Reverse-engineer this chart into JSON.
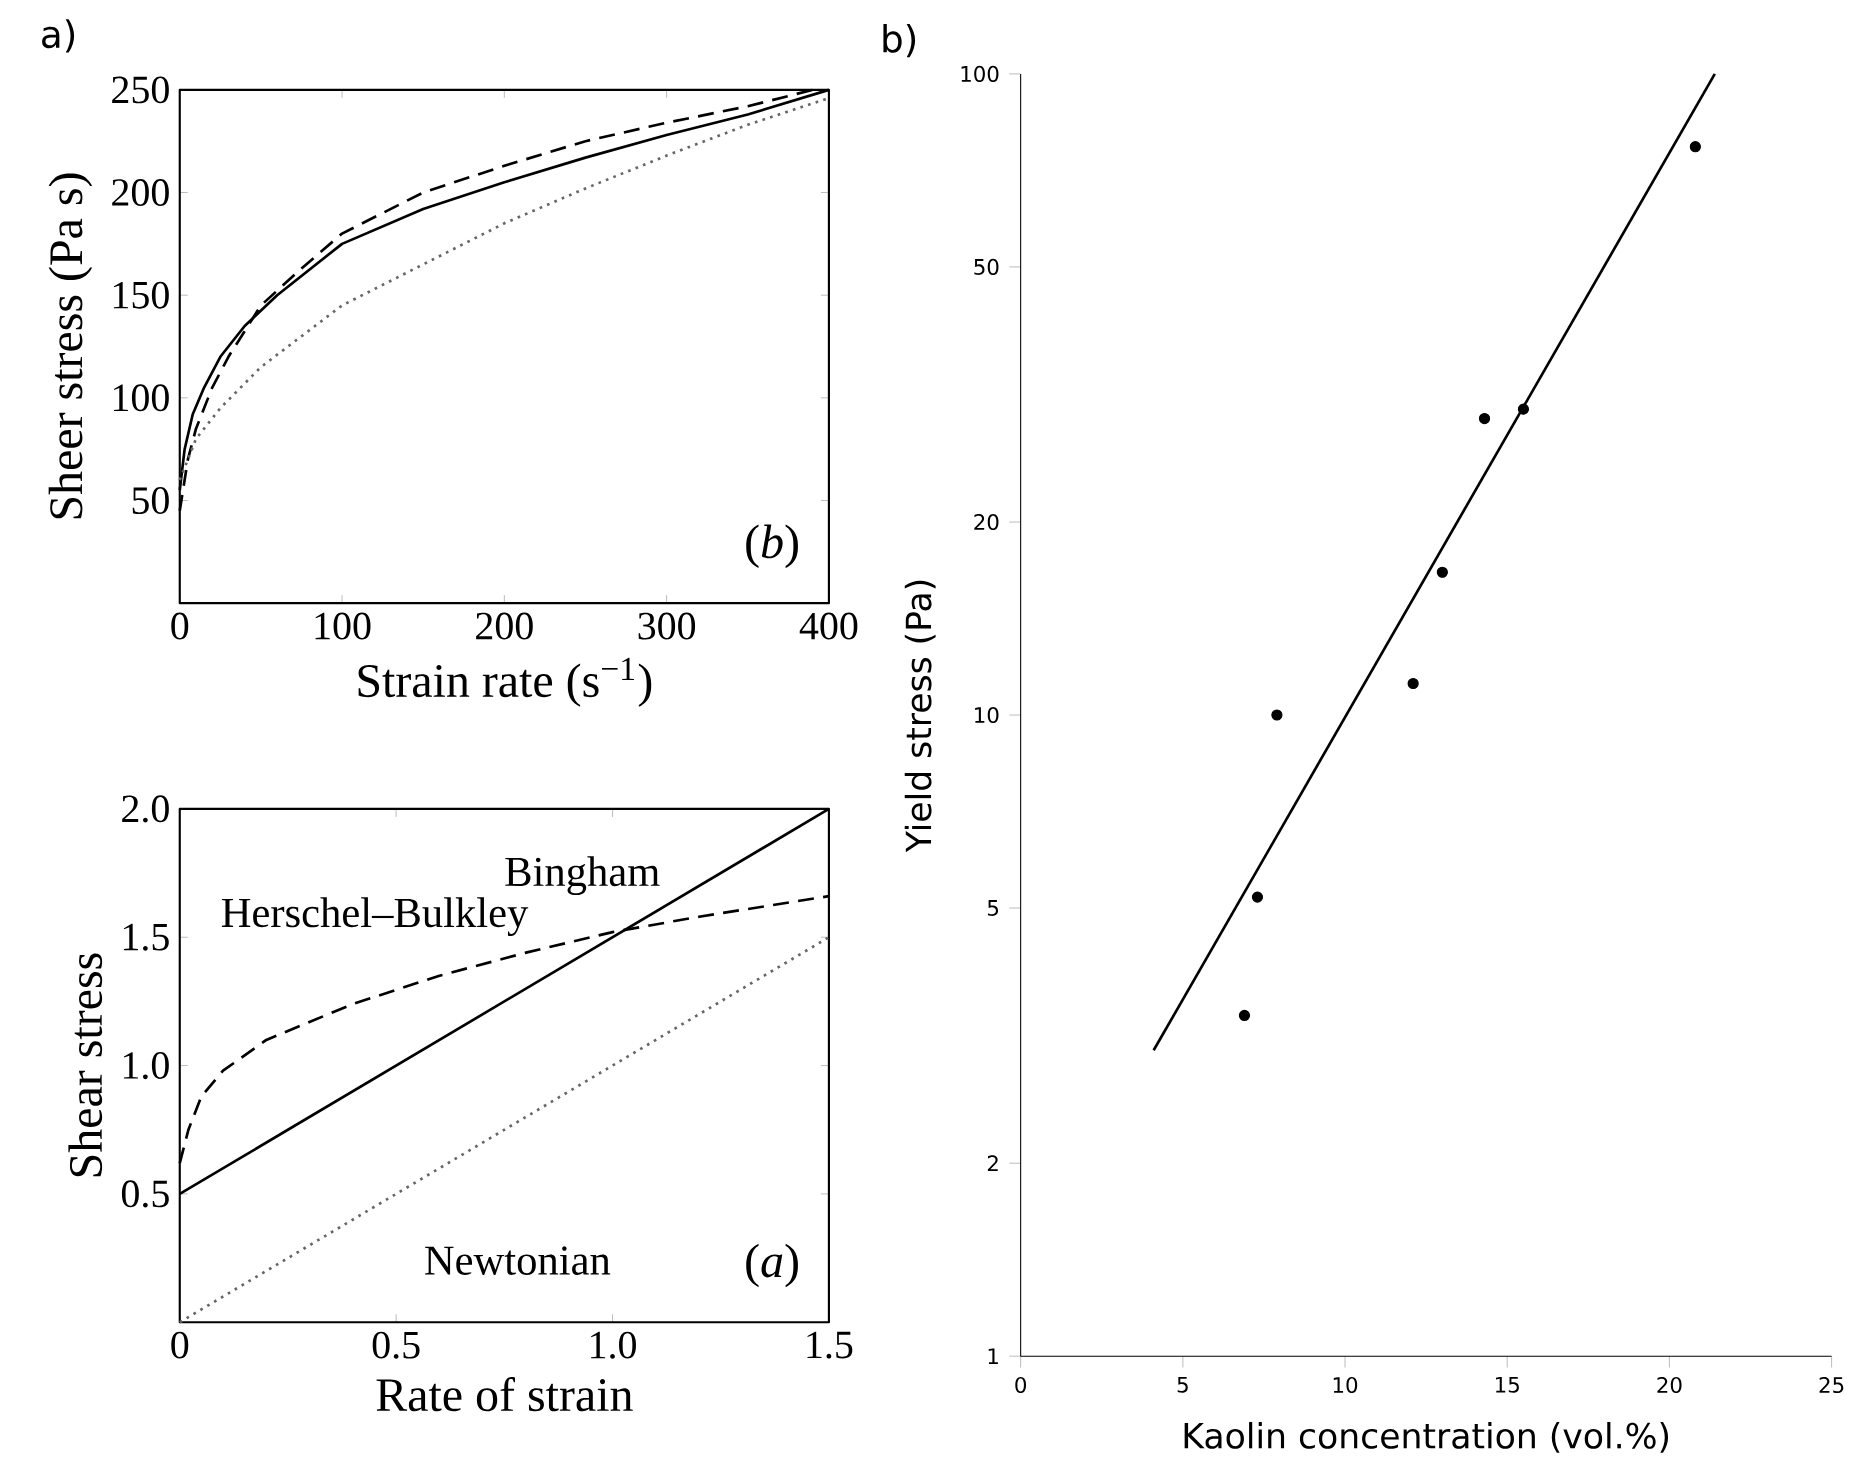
{
  "chart_data": [
    {
      "type": "line",
      "xlabel": "Strain rate (s$^{−1}$)",
      "ylabel": "Sheer stress (Pa s)",
      "annotations": [
        "a)",
        "(*b*)"
      ],
      "xlim": [
        0,
        400
      ],
      "ylim": [
        0,
        250
      ],
      "xticks": [
        0,
        100,
        200,
        300,
        400
      ],
      "yticks": [
        50,
        100,
        150,
        200,
        250
      ],
      "series": [
        {
          "color": "#000000",
          "line_style": "solid",
          "x": [
            0,
            3,
            8,
            15,
            25,
            40,
            60,
            100,
            150,
            200,
            250,
            300,
            350,
            400
          ],
          "values": [
            55,
            75,
            92,
            105,
            120,
            135,
            150,
            175,
            192,
            205,
            217,
            228,
            238,
            250
          ]
        },
        {
          "color": "#000000",
          "line_style": "dashed",
          "x": [
            0,
            5,
            10,
            20,
            30,
            50,
            75,
            100,
            150,
            200,
            250,
            300,
            350,
            390
          ],
          "values": [
            45,
            70,
            85,
            105,
            120,
            145,
            163,
            180,
            200,
            213,
            225,
            234,
            242,
            250
          ]
        },
        {
          "color": "#666666",
          "line_style": "dotted",
          "x": [
            0,
            10,
            25,
            50,
            100,
            150,
            200,
            250,
            300,
            350,
            400
          ],
          "values": [
            60,
            80,
            95,
            115,
            145,
            165,
            185,
            202,
            218,
            233,
            246
          ]
        }
      ]
    },
    {
      "type": "line",
      "xlabel": "Rate of strain",
      "ylabel": "Shear stress",
      "annotations": [
        "(*a*)"
      ],
      "xlim": [
        0,
        1.5
      ],
      "ylim": [
        0,
        2.0
      ],
      "xticks": [
        0,
        0.5,
        {
          "value": 1,
          "label": "1.0"
        },
        1.5
      ],
      "yticks": [
        0.5,
        {
          "value": 1,
          "label": "1.0"
        },
        1.5,
        {
          "value": 2,
          "label": "2.0"
        }
      ],
      "series": [
        {
          "name": "Bingham",
          "color": "#000000",
          "line_style": "solid",
          "x": [
            0,
            1.5
          ],
          "values": [
            0.5,
            2.0
          ]
        },
        {
          "name": "Herschel–Bulkley",
          "color": "#000000",
          "line_style": "dashed",
          "x": [
            0,
            0.02,
            0.05,
            0.1,
            0.2,
            0.4,
            0.6,
            0.8,
            1.0,
            1.2,
            1.5
          ],
          "values": [
            0.62,
            0.75,
            0.88,
            0.98,
            1.1,
            1.24,
            1.35,
            1.44,
            1.52,
            1.58,
            1.66
          ]
        },
        {
          "name": "Newtonian",
          "color": "#666666",
          "line_style": "dotted",
          "x": [
            0,
            1.5
          ],
          "values": [
            0,
            1.5
          ]
        }
      ]
    },
    {
      "type": "scatter",
      "xlabel": "Kaolin concentration (vol.%)",
      "ylabel": "Yield stress (Pa)",
      "annotations": [
        "b)"
      ],
      "log": "y",
      "xlim": [
        0,
        25
      ],
      "ylim": [
        1,
        100
      ],
      "xticks": [
        0,
        5,
        10,
        15,
        20,
        25
      ],
      "yticks": [
        1,
        2,
        5,
        10,
        20,
        50,
        100
      ],
      "series": [
        {
          "color": "#000000",
          "x": [
            6.9,
            7.3,
            7.9,
            12.1,
            13.0,
            14.3,
            15.5,
            20.8
          ],
          "values": [
            3.4,
            5.2,
            10,
            11.2,
            16.7,
            29,
            30,
            77
          ]
        },
        {
          "type": "line",
          "color": "#000000",
          "line_style": "solid",
          "x": [
            4.1,
            21.4
          ],
          "values": [
            3,
            100
          ]
        }
      ]
    }
  ]
}
